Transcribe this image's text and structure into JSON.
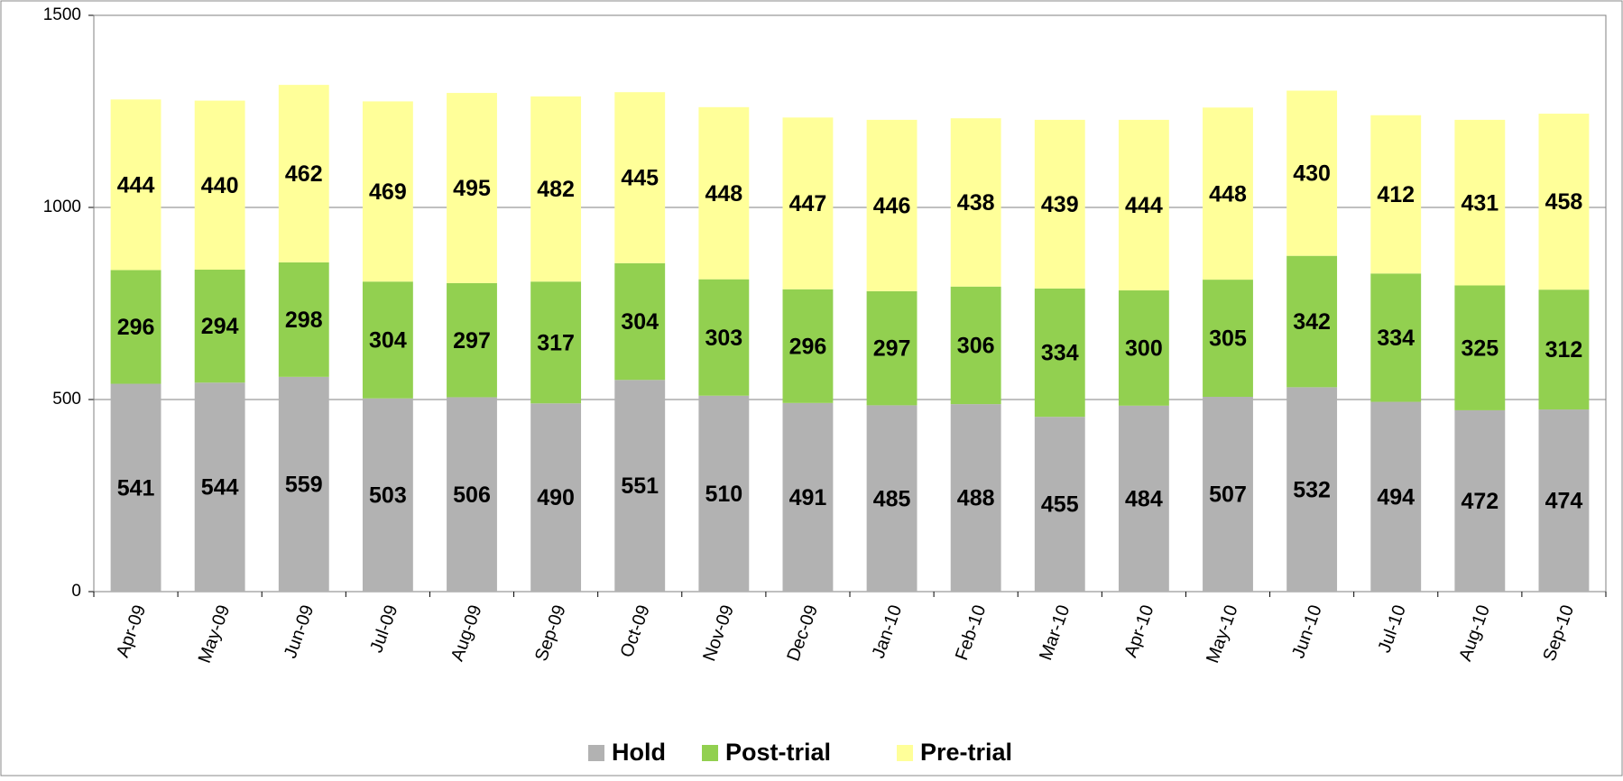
{
  "chart_data": {
    "type": "stacked_bar",
    "categories": [
      "Apr-09",
      "May-09",
      "Jun-09",
      "Jul-09",
      "Aug-09",
      "Sep-09",
      "Oct-09",
      "Nov-09",
      "Dec-09",
      "Jan-10",
      "Feb-10",
      "Mar-10",
      "Apr-10",
      "May-10",
      "Jun-10",
      "Jul-10",
      "Aug-10",
      "Sep-10"
    ],
    "series": [
      {
        "name": "Hold",
        "color": "#b2b2b2",
        "values": [
          541,
          544,
          559,
          503,
          506,
          490,
          551,
          510,
          491,
          485,
          488,
          455,
          484,
          507,
          532,
          494,
          472,
          474
        ]
      },
      {
        "name": "Post-trial",
        "color": "#92d050",
        "values": [
          296,
          294,
          298,
          304,
          297,
          317,
          304,
          303,
          296,
          297,
          306,
          334,
          300,
          305,
          342,
          334,
          325,
          312
        ]
      },
      {
        "name": "Pre-trial",
        "color": "#ffff99",
        "values": [
          444,
          440,
          462,
          469,
          495,
          482,
          445,
          448,
          447,
          446,
          438,
          439,
          444,
          448,
          430,
          412,
          431,
          458
        ]
      }
    ],
    "ylim": [
      0,
      1500
    ],
    "yticks": [
      0,
      500,
      1000,
      1500
    ],
    "grid": true,
    "legend": "bottom"
  }
}
